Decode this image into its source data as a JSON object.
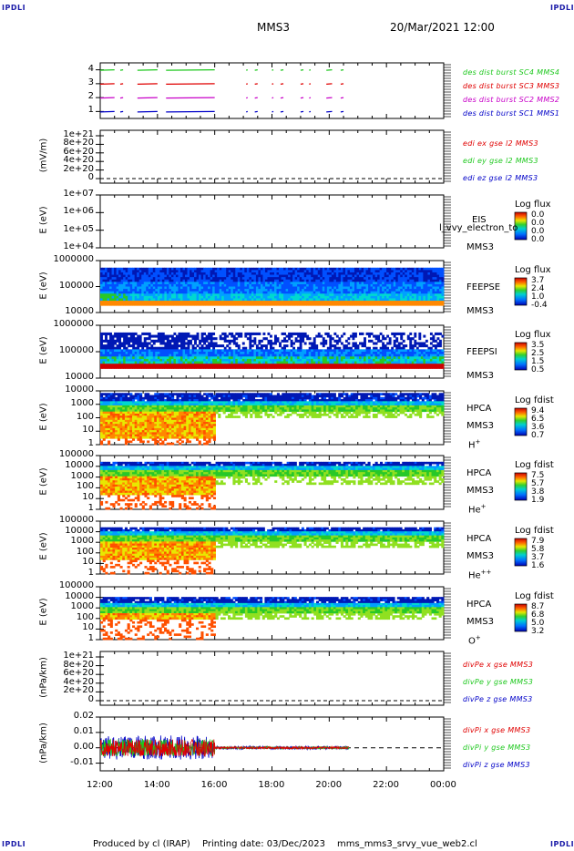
{
  "header": {
    "corner_label": "IPDLI",
    "spacecraft": "MMS3",
    "datetime": "20/Mar/2021 12:00"
  },
  "footer": {
    "produced_by": "Produced by cl (IRAP)",
    "printing_date": "Printing date: 03/Dec/2023",
    "filename": "mms_mms3_srvy_vue_web2.cl"
  },
  "colors": {
    "red": "#e00000",
    "green": "#1ec81e",
    "blue": "#0000c8",
    "magenta": "#c800c8"
  },
  "chart_data": [
    {
      "type": "line",
      "panel": "burst",
      "ylim": [
        0.5,
        4.5
      ],
      "yticks": [
        "4",
        "3",
        "2",
        "1"
      ],
      "series": [
        {
          "name": "des dist burst SC1 MMS1",
          "level": 1,
          "color": "#0000c8"
        },
        {
          "name": "des dist burst SC2 MMS2",
          "level": 2,
          "color": "#c800c8"
        },
        {
          "name": "des dist burst SC3 MMS3",
          "level": 3,
          "color": "#e00000"
        },
        {
          "name": "des dist burst SC4 MMS4",
          "level": 4,
          "color": "#1ec81e"
        }
      ],
      "intervals_hours": [
        [
          12.0,
          12.5
        ],
        [
          12.7,
          12.8
        ],
        [
          13.3,
          14.0
        ],
        [
          14.3,
          16.0
        ],
        [
          17.1,
          17.15
        ],
        [
          17.4,
          17.5
        ],
        [
          18.0,
          18.05
        ],
        [
          18.3,
          18.4
        ],
        [
          19.0,
          19.1
        ],
        [
          19.3,
          19.35
        ],
        [
          19.9,
          20.1
        ],
        [
          20.4,
          20.5
        ]
      ]
    },
    {
      "type": "line",
      "panel": "edi",
      "ylabel": "(mV/m)",
      "yticks": [
        "1e+21",
        "8e+20",
        "6e+20",
        "4e+20",
        "2e+20",
        "0"
      ],
      "series": [
        {
          "name": "edi ex gse l2 MMS3",
          "color": "#e00000"
        },
        {
          "name": "edi ey gse l2 MMS3",
          "color": "#1ec81e"
        },
        {
          "name": "edi ez gse l2 MMS3",
          "color": "#0000c8"
        }
      ]
    },
    {
      "type": "heatmap",
      "panel": "eis",
      "ylabel": "E (eV)",
      "yticks": [
        "1e+07",
        "1e+06",
        "1e+05",
        "1e+04"
      ],
      "instrument": "EIS",
      "overlay_text": "l_vvy_electron_to",
      "spacecraft": "MMS3",
      "colorbar_title": "Log flux",
      "colorbar_values": [
        "0.0",
        "0.0",
        "0.0",
        "0.0"
      ]
    },
    {
      "type": "heatmap",
      "panel": "feepse",
      "ylabel": "E (eV)",
      "yticks": [
        "1000000",
        "100000",
        "10000"
      ],
      "instrument": "FEEPSE",
      "spacecraft": "MMS3",
      "colorbar_title": "Log flux",
      "colorbar_values": [
        "3.7",
        "2.4",
        "1.0",
        "-0.4"
      ]
    },
    {
      "type": "heatmap",
      "panel": "feepsi",
      "ylabel": "E (eV)",
      "yticks": [
        "1000000",
        "100000",
        "10000"
      ],
      "instrument": "FEEPSI",
      "spacecraft": "MMS3",
      "colorbar_title": "Log flux",
      "colorbar_values": [
        "3.5",
        "2.5",
        "1.5",
        "0.5"
      ]
    },
    {
      "type": "heatmap",
      "panel": "hpca-h",
      "ylabel": "E (eV)",
      "yticks": [
        "10000",
        "1000",
        "100",
        "10",
        "1"
      ],
      "instrument": "HPCA",
      "spacecraft": "MMS3",
      "species": "H",
      "species_sup": "+",
      "colorbar_title": "Log fdist",
      "colorbar_values": [
        "9.4",
        "6.5",
        "3.6",
        "0.7"
      ]
    },
    {
      "type": "heatmap",
      "panel": "hpca-he",
      "ylabel": "E (eV)",
      "yticks": [
        "100000",
        "10000",
        "1000",
        "100",
        "10",
        "1"
      ],
      "instrument": "HPCA",
      "spacecraft": "MMS3",
      "species": "He",
      "species_sup": "+",
      "colorbar_title": "Log fdist",
      "colorbar_values": [
        "7.5",
        "5.7",
        "3.8",
        "1.9"
      ]
    },
    {
      "type": "heatmap",
      "panel": "hpca-he2",
      "ylabel": "E (eV)",
      "yticks": [
        "100000",
        "10000",
        "1000",
        "100",
        "10",
        "1"
      ],
      "instrument": "HPCA",
      "spacecraft": "MMS3",
      "species": "He",
      "species_sup": "++",
      "colorbar_title": "Log fdist",
      "colorbar_values": [
        "7.9",
        "5.8",
        "3.7",
        "1.6"
      ]
    },
    {
      "type": "heatmap",
      "panel": "hpca-o",
      "ylabel": "E (eV)",
      "yticks": [
        "100000",
        "10000",
        "1000",
        "100",
        "10",
        "1"
      ],
      "instrument": "HPCA",
      "spacecraft": "MMS3",
      "species": "O",
      "species_sup": "+",
      "colorbar_title": "Log fdist",
      "colorbar_values": [
        "8.7",
        "6.8",
        "5.0",
        "3.2"
      ]
    },
    {
      "type": "line",
      "panel": "divpe",
      "ylabel": "(nPa/km)",
      "yticks": [
        "1e+21",
        "8e+20",
        "6e+20",
        "4e+20",
        "2e+20",
        "0"
      ],
      "series": [
        {
          "name": "divPe x gse MMS3",
          "color": "#e00000"
        },
        {
          "name": "divPe y gse MMS3",
          "color": "#1ec81e"
        },
        {
          "name": "divPe z gse MMS3",
          "color": "#0000c8"
        }
      ]
    },
    {
      "type": "line",
      "panel": "divpi",
      "ylabel": "(nPa/km)",
      "ylim": [
        -0.015,
        0.02
      ],
      "yticks": [
        "0.02",
        "0.01",
        "0.00",
        "-0.01"
      ],
      "x_tick_labels": [
        "12:00",
        "14:00",
        "16:00",
        "18:00",
        "20:00",
        "22:00",
        "00:00"
      ],
      "series": [
        {
          "name": "divPi x gse MMS3",
          "color": "#e00000"
        },
        {
          "name": "divPi y gse MMS3",
          "color": "#1ec81e"
        },
        {
          "name": "divPi z gse MMS3",
          "color": "#0000c8"
        }
      ],
      "amplitude_before_16h": 0.008,
      "amplitude_after_16h": 0.001,
      "data_end_hour": 20.7
    }
  ]
}
